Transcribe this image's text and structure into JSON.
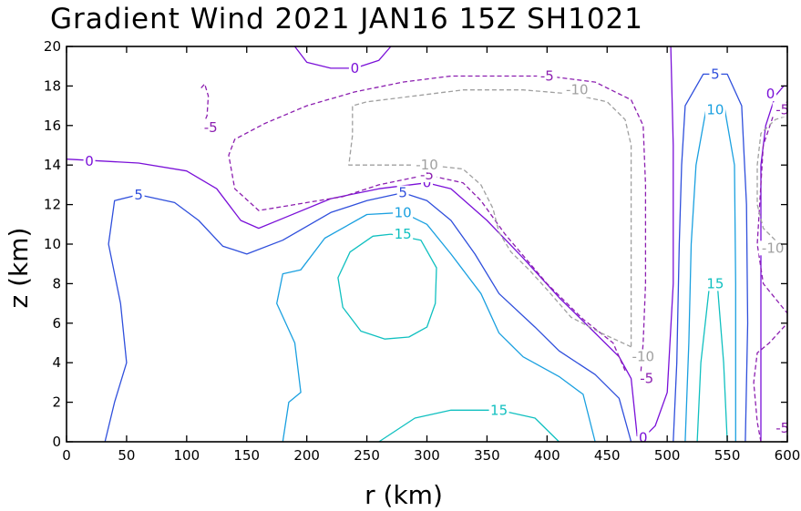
{
  "chart_data": {
    "type": "contour",
    "title": "Gradient Wind 2021 JAN16 15Z  SH1021",
    "xlabel": "r (km)",
    "ylabel": "z (km)",
    "xlim": [
      0,
      600
    ],
    "ylim": [
      0,
      20
    ],
    "xticks": [
      0,
      50,
      100,
      150,
      200,
      250,
      300,
      350,
      400,
      450,
      500,
      550,
      600
    ],
    "yticks": [
      0,
      2,
      4,
      6,
      8,
      10,
      12,
      14,
      16,
      18,
      20
    ],
    "levels": [
      {
        "value": -10,
        "label": "-10",
        "color": "#a0a0a0",
        "dashed": true
      },
      {
        "value": -5,
        "label": "-5",
        "color": "#8c1fb0",
        "dashed": true
      },
      {
        "value": 0,
        "label": "0",
        "color": "#7a10d8",
        "dashed": false
      },
      {
        "value": 5,
        "label": "5",
        "color": "#2f4fdc",
        "dashed": false
      },
      {
        "value": 10,
        "label": "10",
        "color": "#1aa0e0",
        "dashed": false
      },
      {
        "value": 15,
        "label": "15",
        "color": "#10c0c0",
        "dashed": false
      }
    ],
    "contours": [
      {
        "level": 0,
        "points": [
          [
            0,
            14.3
          ],
          [
            60,
            14.1
          ],
          [
            100,
            13.7
          ],
          [
            125,
            12.8
          ],
          [
            145,
            11.2
          ],
          [
            160,
            10.8
          ],
          [
            180,
            11.3
          ],
          [
            220,
            12.3
          ],
          [
            260,
            12.8
          ],
          [
            300,
            13.1
          ],
          [
            320,
            12.8
          ],
          [
            350,
            11.2
          ],
          [
            380,
            9.3
          ],
          [
            410,
            7.3
          ],
          [
            440,
            5.5
          ],
          [
            460,
            4.3
          ],
          [
            470,
            3.2
          ],
          [
            475,
            0.3
          ],
          [
            480,
            0.2
          ],
          [
            490,
            0.8
          ],
          [
            500,
            2.5
          ],
          [
            505,
            8
          ],
          [
            505,
            15
          ],
          [
            503,
            20
          ]
        ]
      },
      {
        "level": 0,
        "points": [
          [
            190,
            20
          ],
          [
            200,
            19.2
          ],
          [
            220,
            18.9
          ],
          [
            240,
            18.9
          ],
          [
            260,
            19.3
          ],
          [
            270,
            20
          ]
        ]
      },
      {
        "level": 0,
        "points": [
          [
            578,
            0
          ],
          [
            578,
            5
          ],
          [
            578,
            10
          ],
          [
            578,
            14
          ],
          [
            582,
            16
          ],
          [
            590,
            17.5
          ],
          [
            597,
            18
          ],
          [
            600,
            18
          ]
        ]
      },
      {
        "level": 5,
        "points": [
          [
            32,
            0
          ],
          [
            40,
            2
          ],
          [
            50,
            4
          ],
          [
            45,
            7
          ],
          [
            35,
            10
          ],
          [
            40,
            12.2
          ],
          [
            60,
            12.5
          ],
          [
            90,
            12.1
          ],
          [
            110,
            11.2
          ],
          [
            130,
            9.9
          ],
          [
            150,
            9.5
          ],
          [
            180,
            10.2
          ],
          [
            220,
            11.6
          ],
          [
            250,
            12.2
          ],
          [
            280,
            12.6
          ],
          [
            300,
            12.2
          ],
          [
            320,
            11.2
          ],
          [
            340,
            9.5
          ],
          [
            360,
            7.5
          ],
          [
            390,
            5.8
          ],
          [
            410,
            4.6
          ],
          [
            440,
            3.4
          ],
          [
            460,
            2.2
          ],
          [
            470,
            0
          ]
        ]
      },
      {
        "level": 5,
        "points": [
          [
            505,
            0
          ],
          [
            508,
            4
          ],
          [
            510,
            10
          ],
          [
            512,
            14
          ],
          [
            515,
            17
          ],
          [
            530,
            18.6
          ],
          [
            550,
            18.6
          ],
          [
            562,
            17
          ],
          [
            566,
            12
          ],
          [
            567,
            6
          ],
          [
            565,
            0
          ]
        ]
      },
      {
        "level": 10,
        "points": [
          [
            180,
            0
          ],
          [
            185,
            2
          ],
          [
            195,
            2.5
          ],
          [
            190,
            5
          ],
          [
            175,
            7
          ],
          [
            180,
            8.5
          ],
          [
            195,
            8.7
          ],
          [
            215,
            10.3
          ],
          [
            250,
            11.5
          ],
          [
            280,
            11.6
          ],
          [
            300,
            11
          ],
          [
            320,
            9.5
          ],
          [
            345,
            7.5
          ],
          [
            360,
            5.5
          ],
          [
            380,
            4.3
          ],
          [
            410,
            3.3
          ],
          [
            430,
            2.4
          ],
          [
            440,
            0
          ]
        ]
      },
      {
        "level": 10,
        "points": [
          [
            515,
            0
          ],
          [
            518,
            5
          ],
          [
            520,
            10
          ],
          [
            524,
            14
          ],
          [
            532,
            16.7
          ],
          [
            548,
            16.8
          ],
          [
            556,
            14
          ],
          [
            557,
            8
          ],
          [
            557,
            0
          ]
        ]
      },
      {
        "level": 15,
        "points": [
          [
            260,
            0
          ],
          [
            290,
            1.2
          ],
          [
            320,
            1.6
          ],
          [
            360,
            1.6
          ],
          [
            390,
            1.2
          ],
          [
            410,
            0
          ]
        ]
      },
      {
        "level": 15,
        "points": [
          [
            270,
            10.5
          ],
          [
            295,
            10.2
          ],
          [
            308,
            8.8
          ],
          [
            307,
            7
          ],
          [
            300,
            5.8
          ],
          [
            285,
            5.3
          ],
          [
            265,
            5.2
          ],
          [
            245,
            5.6
          ],
          [
            230,
            6.8
          ],
          [
            226,
            8.3
          ],
          [
            236,
            9.6
          ],
          [
            255,
            10.4
          ],
          [
            270,
            10.5
          ]
        ]
      },
      {
        "level": 15,
        "points": [
          [
            525,
            0
          ],
          [
            528,
            4
          ],
          [
            535,
            7.8
          ],
          [
            542,
            7.8
          ],
          [
            547,
            4
          ],
          [
            550,
            0
          ]
        ]
      },
      {
        "level": -5,
        "points": [
          [
            112,
            17.9
          ],
          [
            115,
            18.1
          ],
          [
            118,
            17.5
          ],
          [
            117,
            16.5
          ],
          [
            112,
            15.8
          ]
        ]
      },
      {
        "level": -5,
        "points": [
          [
            465,
            3.6
          ],
          [
            455,
            5
          ],
          [
            430,
            6.2
          ],
          [
            400,
            8
          ],
          [
            365,
            10.5
          ],
          [
            345,
            12.2
          ],
          [
            330,
            13.1
          ],
          [
            300,
            13.5
          ],
          [
            260,
            13
          ],
          [
            230,
            12.4
          ],
          [
            200,
            12.1
          ],
          [
            180,
            11.9
          ],
          [
            160,
            11.7
          ],
          [
            140,
            12.8
          ],
          [
            135,
            14.5
          ],
          [
            140,
            15.3
          ],
          [
            165,
            16.1
          ],
          [
            200,
            17
          ],
          [
            240,
            17.7
          ],
          [
            280,
            18.2
          ],
          [
            320,
            18.5
          ],
          [
            400,
            18.5
          ],
          [
            440,
            18.2
          ],
          [
            470,
            17.3
          ],
          [
            480,
            16
          ],
          [
            482,
            13
          ],
          [
            482,
            8
          ],
          [
            480,
            5
          ],
          [
            478,
            3.5
          ]
        ]
      },
      {
        "level": -5,
        "points": [
          [
            578,
            0
          ],
          [
            575,
            1
          ],
          [
            572,
            3
          ],
          [
            575,
            4.5
          ],
          [
            585,
            5
          ],
          [
            600,
            6
          ]
        ]
      },
      {
        "level": -5,
        "points": [
          [
            600,
            17.2
          ],
          [
            590,
            16.8
          ],
          [
            580,
            15
          ],
          [
            575,
            10
          ],
          [
            580,
            8
          ],
          [
            600,
            6.5
          ]
        ]
      },
      {
        "level": -10,
        "points": [
          [
            470,
            4.8
          ],
          [
            445,
            5.5
          ],
          [
            420,
            6.3
          ],
          [
            400,
            7.7
          ],
          [
            385,
            8.7
          ],
          [
            370,
            9.6
          ],
          [
            360,
            10.6
          ],
          [
            355,
            11.8
          ],
          [
            345,
            13
          ],
          [
            330,
            13.8
          ],
          [
            300,
            14
          ],
          [
            260,
            14
          ],
          [
            235,
            14
          ],
          [
            238,
            15.5
          ],
          [
            238,
            17
          ],
          [
            250,
            17.2
          ],
          [
            290,
            17.5
          ],
          [
            330,
            17.8
          ],
          [
            380,
            17.8
          ],
          [
            420,
            17.6
          ],
          [
            450,
            17.2
          ],
          [
            465,
            16.3
          ],
          [
            470,
            15
          ],
          [
            470,
            10
          ],
          [
            470,
            6
          ],
          [
            470,
            4.8
          ]
        ]
      },
      {
        "level": -10,
        "points": [
          [
            600,
            9.8
          ],
          [
            590,
            10.2
          ],
          [
            580,
            10.8
          ],
          [
            575,
            12
          ],
          [
            575,
            14
          ],
          [
            578,
            15.6
          ],
          [
            590,
            16.3
          ],
          [
            600,
            16.5
          ]
        ]
      }
    ],
    "contour_labels": [
      {
        "text": "0",
        "x": 19,
        "y": 14.2,
        "level": 0
      },
      {
        "text": "0",
        "x": 240,
        "y": 18.9,
        "level": 0
      },
      {
        "text": "0",
        "x": 300,
        "y": 13.1,
        "level": 0
      },
      {
        "text": "0",
        "x": 480,
        "y": 0.2,
        "level": 0
      },
      {
        "text": "0",
        "x": 586,
        "y": 17.6,
        "level": 0
      },
      {
        "text": "5",
        "x": 60,
        "y": 12.5,
        "level": 5
      },
      {
        "text": "5",
        "x": 280,
        "y": 12.6,
        "level": 5
      },
      {
        "text": "5",
        "x": 540,
        "y": 18.6,
        "level": 5
      },
      {
        "text": "10",
        "x": 280,
        "y": 11.6,
        "level": 10
      },
      {
        "text": "10",
        "x": 540,
        "y": 16.8,
        "level": 10
      },
      {
        "text": "15",
        "x": 280,
        "y": 10.5,
        "level": 15
      },
      {
        "text": "15",
        "x": 540,
        "y": 8,
        "level": 15
      },
      {
        "text": "15",
        "x": 360,
        "y": 1.6,
        "level": 15
      },
      {
        "text": "-5",
        "x": 120,
        "y": 15.9,
        "level": -5
      },
      {
        "text": "-5",
        "x": 300,
        "y": 13.5,
        "level": -5
      },
      {
        "text": "-5",
        "x": 400,
        "y": 18.5,
        "level": -5
      },
      {
        "text": "-5",
        "x": 483,
        "y": 3.2,
        "level": -5
      },
      {
        "text": "-5",
        "x": 596,
        "y": 16.8,
        "level": -5
      },
      {
        "text": "-5",
        "x": 596,
        "y": 0.7,
        "level": -5
      },
      {
        "text": "-10",
        "x": 425,
        "y": 17.8,
        "level": -10
      },
      {
        "text": "-10",
        "x": 300,
        "y": 14,
        "level": -10
      },
      {
        "text": "-10",
        "x": 480,
        "y": 4.3,
        "level": -10
      },
      {
        "text": "-10",
        "x": 588,
        "y": 9.8,
        "level": -10
      }
    ],
    "grid": false,
    "legend": "none"
  }
}
